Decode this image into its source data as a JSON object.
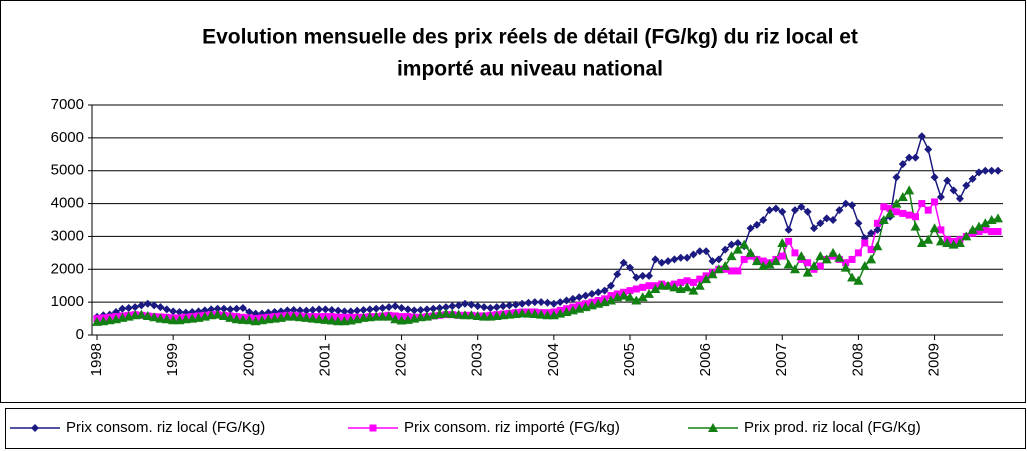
{
  "chart_data": {
    "type": "line",
    "title": "Evolution mensuelle des prix réels de détail (FG/kg) du riz local et",
    "title_line2": "importé au niveau national",
    "categories": [
      "1998",
      null,
      null,
      null,
      null,
      null,
      null,
      null,
      null,
      null,
      null,
      null,
      "1999",
      null,
      null,
      null,
      null,
      null,
      null,
      null,
      null,
      null,
      null,
      null,
      "2000",
      null,
      null,
      null,
      null,
      null,
      null,
      null,
      null,
      null,
      null,
      null,
      "2001",
      null,
      null,
      null,
      null,
      null,
      null,
      null,
      null,
      null,
      null,
      null,
      "2002",
      null,
      null,
      null,
      null,
      null,
      null,
      null,
      null,
      null,
      null,
      null,
      "2003",
      null,
      null,
      null,
      null,
      null,
      null,
      null,
      null,
      null,
      null,
      null,
      "2004",
      null,
      null,
      null,
      null,
      null,
      null,
      null,
      null,
      null,
      null,
      null,
      "2005",
      null,
      null,
      null,
      null,
      null,
      null,
      null,
      null,
      null,
      null,
      null,
      "2006",
      null,
      null,
      null,
      null,
      null,
      null,
      null,
      null,
      null,
      null,
      null,
      "2007",
      null,
      null,
      null,
      null,
      null,
      null,
      null,
      null,
      null,
      null,
      null,
      "2008",
      null,
      null,
      null,
      null,
      null,
      null,
      null,
      null,
      null,
      null,
      null,
      "2009",
      null,
      null,
      null,
      null,
      null,
      null,
      null,
      null,
      null,
      null
    ],
    "series": [
      {
        "name": "Prix consom. riz local (FG/Kg)",
        "color": "#1a1a80",
        "marker": "diamond",
        "values": [
          550,
          600,
          620,
          700,
          800,
          820,
          850,
          900,
          950,
          900,
          850,
          780,
          720,
          700,
          680,
          700,
          720,
          750,
          780,
          800,
          800,
          780,
          800,
          820,
          700,
          650,
          650,
          680,
          700,
          720,
          750,
          760,
          750,
          740,
          760,
          780,
          780,
          760,
          740,
          720,
          720,
          740,
          760,
          780,
          800,
          820,
          850,
          880,
          820,
          780,
          750,
          760,
          780,
          800,
          820,
          850,
          880,
          900,
          950,
          920,
          880,
          850,
          820,
          850,
          880,
          900,
          920,
          950,
          980,
          1000,
          1000,
          980,
          950,
          1000,
          1050,
          1100,
          1150,
          1200,
          1250,
          1300,
          1350,
          1500,
          1850,
          2200,
          2050,
          1750,
          1800,
          1800,
          2300,
          2200,
          2250,
          2300,
          2350,
          2350,
          2450,
          2550,
          2550,
          2250,
          2300,
          2600,
          2750,
          2800,
          2700,
          3250,
          3350,
          3500,
          3800,
          3850,
          3750,
          3200,
          3800,
          3900,
          3750,
          3250,
          3400,
          3550,
          3500,
          3800,
          4000,
          3950,
          3400,
          2950,
          3100,
          3200,
          3500,
          3600,
          4800,
          5200,
          5400,
          5400,
          6050,
          5650,
          4800,
          4200,
          4700,
          4400,
          4150,
          4550,
          4750,
          4950,
          5000,
          5000,
          5000
        ]
      },
      {
        "name": "Prix consom. riz importé (FG/kg)",
        "color": "#ff00ff",
        "marker": "square",
        "values": [
          500,
          520,
          540,
          560,
          580,
          600,
          620,
          600,
          580,
          560,
          550,
          540,
          520,
          520,
          540,
          560,
          580,
          600,
          620,
          620,
          600,
          580,
          560,
          540,
          520,
          500,
          520,
          540,
          560,
          580,
          600,
          600,
          580,
          560,
          560,
          560,
          560,
          560,
          540,
          540,
          540,
          540,
          540,
          560,
          560,
          580,
          600,
          580,
          560,
          560,
          540,
          540,
          560,
          580,
          600,
          620,
          620,
          600,
          600,
          600,
          580,
          580,
          600,
          620,
          640,
          660,
          680,
          700,
          700,
          700,
          680,
          680,
          700,
          750,
          800,
          850,
          900,
          950,
          1000,
          1050,
          1100,
          1200,
          1250,
          1300,
          1350,
          1400,
          1450,
          1500,
          1500,
          1550,
          1500,
          1550,
          1600,
          1650,
          1600,
          1700,
          1800,
          1900,
          2000,
          2000,
          1950,
          1950,
          2300,
          2400,
          2300,
          2250,
          2200,
          2300,
          2400,
          2850,
          2500,
          2300,
          2200,
          2000,
          2100,
          2300,
          2400,
          2300,
          2200,
          2300,
          2500,
          2800,
          2600,
          3400,
          3900,
          3850,
          3750,
          3700,
          3650,
          3600,
          4000,
          3800,
          4050,
          3200,
          2900,
          2850,
          2900,
          3000,
          3100,
          3150,
          3200,
          3150,
          3150
        ]
      },
      {
        "name": "Prix prod. riz local (FG/Kg)",
        "color": "#138013",
        "marker": "triangle",
        "values": [
          400,
          420,
          450,
          480,
          520,
          560,
          600,
          620,
          580,
          540,
          500,
          480,
          450,
          450,
          480,
          500,
          520,
          560,
          600,
          620,
          580,
          520,
          480,
          460,
          450,
          420,
          450,
          480,
          500,
          520,
          560,
          560,
          540,
          520,
          500,
          480,
          460,
          440,
          420,
          420,
          440,
          480,
          520,
          540,
          560,
          560,
          560,
          480,
          440,
          460,
          500,
          540,
          560,
          600,
          640,
          660,
          640,
          620,
          600,
          600,
          580,
          560,
          560,
          580,
          600,
          620,
          640,
          660,
          650,
          640,
          620,
          600,
          600,
          650,
          700,
          750,
          800,
          850,
          900,
          950,
          1000,
          1050,
          1150,
          1200,
          1150,
          1050,
          1150,
          1250,
          1400,
          1500,
          1500,
          1450,
          1400,
          1450,
          1350,
          1500,
          1700,
          1850,
          2000,
          2100,
          2400,
          2600,
          2750,
          2500,
          2250,
          2100,
          2150,
          2250,
          2800,
          2150,
          2000,
          2400,
          1900,
          2100,
          2400,
          2300,
          2500,
          2350,
          2050,
          1750,
          1650,
          2100,
          2300,
          2700,
          3500,
          3700,
          4000,
          4200,
          4400,
          3300,
          2800,
          2900,
          3250,
          2850,
          2800,
          2750,
          2800,
          3000,
          3200,
          3300,
          3400,
          3500,
          3550
        ]
      }
    ],
    "ylim": [
      0,
      7000
    ],
    "yticks": [
      0,
      1000,
      2000,
      3000,
      4000,
      5000,
      6000,
      7000
    ],
    "grid": true
  }
}
